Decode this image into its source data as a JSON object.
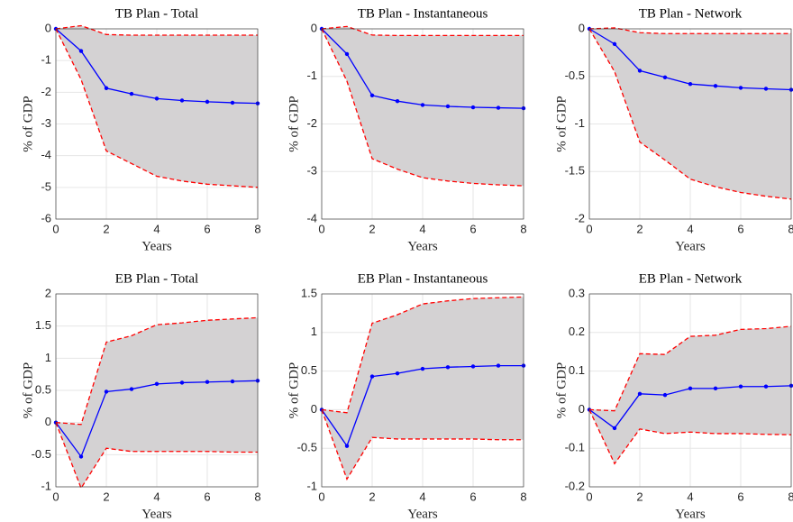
{
  "chart_data": [
    {
      "type": "line",
      "title": "TB Plan - Total",
      "xlabel": "Years",
      "ylabel": "% of GDP",
      "x": [
        0,
        1,
        2,
        3,
        4,
        5,
        6,
        7,
        8
      ],
      "xlim": [
        0,
        8
      ],
      "xticks": [
        0,
        2,
        4,
        6,
        8
      ],
      "ylim": [
        -6,
        0
      ],
      "yticks": [
        -6,
        -5,
        -4,
        -3,
        -2,
        -1,
        0
      ],
      "grid": true,
      "fill_between": [
        1,
        2
      ],
      "fill_color": "#d4d2d3",
      "series": [
        {
          "color": "#0000ff",
          "linestyle": "solid",
          "marker": true,
          "values": [
            0,
            -0.7,
            -1.87,
            -2.05,
            -2.2,
            -2.26,
            -2.3,
            -2.33,
            -2.35
          ]
        },
        {
          "color": "#ff0000",
          "linestyle": "dashed",
          "marker": false,
          "values": [
            0,
            0.1,
            -0.18,
            -0.2,
            -0.2,
            -0.2,
            -0.2,
            -0.2,
            -0.2
          ]
        },
        {
          "color": "#ff0000",
          "linestyle": "dashed",
          "marker": false,
          "values": [
            0,
            -1.6,
            -3.85,
            -4.25,
            -4.65,
            -4.8,
            -4.9,
            -4.95,
            -5.0
          ]
        }
      ]
    },
    {
      "type": "line",
      "title": "TB Plan - Instantaneous",
      "xlabel": "Years",
      "ylabel": "% of GDP",
      "x": [
        0,
        1,
        2,
        3,
        4,
        5,
        6,
        7,
        8
      ],
      "xlim": [
        0,
        8
      ],
      "xticks": [
        0,
        2,
        4,
        6,
        8
      ],
      "ylim": [
        -4,
        0
      ],
      "yticks": [
        -4,
        -3,
        -2,
        -1,
        0
      ],
      "grid": true,
      "fill_between": [
        1,
        2
      ],
      "fill_color": "#d4d2d3",
      "series": [
        {
          "color": "#0000ff",
          "linestyle": "solid",
          "marker": true,
          "values": [
            0,
            -0.53,
            -1.4,
            -1.52,
            -1.6,
            -1.63,
            -1.65,
            -1.66,
            -1.67
          ]
        },
        {
          "color": "#ff0000",
          "linestyle": "dashed",
          "marker": false,
          "values": [
            0,
            0.05,
            -0.13,
            -0.14,
            -0.14,
            -0.14,
            -0.14,
            -0.14,
            -0.14
          ]
        },
        {
          "color": "#ff0000",
          "linestyle": "dashed",
          "marker": false,
          "values": [
            0,
            -1.1,
            -2.73,
            -2.95,
            -3.13,
            -3.2,
            -3.25,
            -3.28,
            -3.3
          ]
        }
      ]
    },
    {
      "type": "line",
      "title": "TB Plan - Network",
      "xlabel": "Years",
      "ylabel": "% of GDP",
      "x": [
        0,
        1,
        2,
        3,
        4,
        5,
        6,
        7,
        8
      ],
      "xlim": [
        0,
        8
      ],
      "xticks": [
        0,
        2,
        4,
        6,
        8
      ],
      "ylim": [
        -2,
        0
      ],
      "yticks": [
        -2,
        -1.5,
        -1,
        -0.5,
        0
      ],
      "grid": true,
      "fill_between": [
        1,
        2
      ],
      "fill_color": "#d4d2d3",
      "series": [
        {
          "color": "#0000ff",
          "linestyle": "solid",
          "marker": true,
          "values": [
            0,
            -0.16,
            -0.44,
            -0.51,
            -0.58,
            -0.6,
            -0.62,
            -0.63,
            -0.64
          ]
        },
        {
          "color": "#ff0000",
          "linestyle": "dashed",
          "marker": false,
          "values": [
            0,
            0.01,
            -0.04,
            -0.05,
            -0.05,
            -0.05,
            -0.05,
            -0.05,
            -0.05
          ]
        },
        {
          "color": "#ff0000",
          "linestyle": "dashed",
          "marker": false,
          "values": [
            0,
            -0.45,
            -1.19,
            -1.38,
            -1.58,
            -1.66,
            -1.72,
            -1.76,
            -1.79
          ]
        }
      ]
    },
    {
      "type": "line",
      "title": "EB Plan - Total",
      "xlabel": "Years",
      "ylabel": "% of GDP",
      "x": [
        0,
        1,
        2,
        3,
        4,
        5,
        6,
        7,
        8
      ],
      "xlim": [
        0,
        8
      ],
      "xticks": [
        0,
        2,
        4,
        6,
        8
      ],
      "ylim": [
        -1,
        2
      ],
      "yticks": [
        -1,
        -0.5,
        0,
        0.5,
        1,
        1.5,
        2
      ],
      "grid": true,
      "fill_between": [
        1,
        2
      ],
      "fill_color": "#d4d2d3",
      "series": [
        {
          "color": "#0000ff",
          "linestyle": "solid",
          "marker": true,
          "values": [
            0,
            -0.53,
            0.48,
            0.52,
            0.6,
            0.62,
            0.63,
            0.64,
            0.65
          ]
        },
        {
          "color": "#ff0000",
          "linestyle": "dashed",
          "marker": false,
          "values": [
            0,
            -0.03,
            1.25,
            1.35,
            1.52,
            1.55,
            1.59,
            1.61,
            1.63
          ]
        },
        {
          "color": "#ff0000",
          "linestyle": "dashed",
          "marker": false,
          "values": [
            0,
            -1.02,
            -0.4,
            -0.45,
            -0.45,
            -0.45,
            -0.45,
            -0.46,
            -0.46
          ]
        }
      ]
    },
    {
      "type": "line",
      "title": "EB Plan - Instantaneous",
      "xlabel": "Years",
      "ylabel": "% of GDP",
      "x": [
        0,
        1,
        2,
        3,
        4,
        5,
        6,
        7,
        8
      ],
      "xlim": [
        0,
        8
      ],
      "xticks": [
        0,
        2,
        4,
        6,
        8
      ],
      "ylim": [
        -1,
        1.5
      ],
      "yticks": [
        -1,
        -0.5,
        0,
        0.5,
        1,
        1.5
      ],
      "grid": true,
      "fill_between": [
        1,
        2
      ],
      "fill_color": "#d4d2d3",
      "series": [
        {
          "color": "#0000ff",
          "linestyle": "solid",
          "marker": true,
          "values": [
            0,
            -0.47,
            0.43,
            0.47,
            0.53,
            0.55,
            0.56,
            0.57,
            0.57
          ]
        },
        {
          "color": "#ff0000",
          "linestyle": "dashed",
          "marker": false,
          "values": [
            0,
            -0.04,
            1.12,
            1.23,
            1.37,
            1.41,
            1.44,
            1.45,
            1.46
          ]
        },
        {
          "color": "#ff0000",
          "linestyle": "dashed",
          "marker": false,
          "values": [
            0,
            -0.9,
            -0.36,
            -0.38,
            -0.38,
            -0.38,
            -0.38,
            -0.39,
            -0.39
          ]
        }
      ]
    },
    {
      "type": "line",
      "title": "EB Plan - Network",
      "xlabel": "Years",
      "ylabel": "% of GDP",
      "x": [
        0,
        1,
        2,
        3,
        4,
        5,
        6,
        7,
        8
      ],
      "xlim": [
        0,
        8
      ],
      "xticks": [
        0,
        2,
        4,
        6,
        8
      ],
      "ylim": [
        -0.2,
        0.3
      ],
      "yticks": [
        -0.2,
        -0.1,
        0,
        0.1,
        0.2,
        0.3
      ],
      "grid": true,
      "fill_between": [
        1,
        2
      ],
      "fill_color": "#d4d2d3",
      "series": [
        {
          "color": "#0000ff",
          "linestyle": "solid",
          "marker": true,
          "values": [
            0,
            -0.048,
            0.041,
            0.038,
            0.055,
            0.055,
            0.06,
            0.06,
            0.062
          ]
        },
        {
          "color": "#ff0000",
          "linestyle": "dashed",
          "marker": false,
          "values": [
            0,
            -0.003,
            0.145,
            0.143,
            0.19,
            0.193,
            0.208,
            0.21,
            0.216
          ]
        },
        {
          "color": "#ff0000",
          "linestyle": "dashed",
          "marker": false,
          "values": [
            0,
            -0.14,
            -0.05,
            -0.062,
            -0.058,
            -0.062,
            -0.062,
            -0.064,
            -0.065
          ]
        }
      ]
    }
  ]
}
